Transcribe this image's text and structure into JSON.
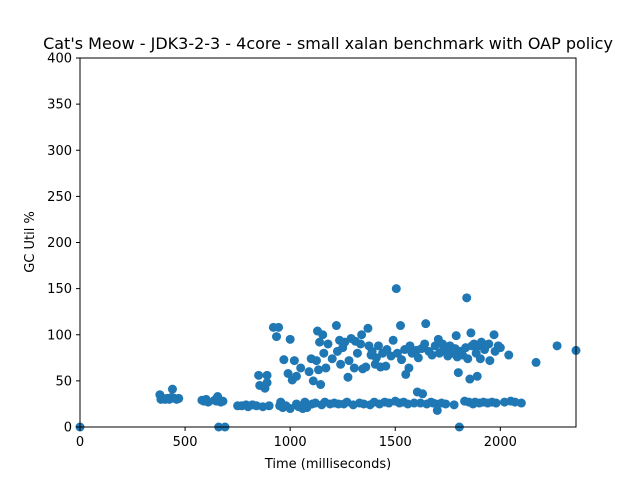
{
  "chart_data": {
    "type": "scatter",
    "title": "Cat's Meow - JDK3-2-3 - 4core -  small xalan benchmark with OAP policy",
    "xlabel": "Time (milliseconds)",
    "ylabel": "GC Util %",
    "xlim": [
      0,
      2360
    ],
    "ylim": [
      0,
      400
    ],
    "xticks": [
      "0",
      "500",
      "1000",
      "1500",
      "2000"
    ],
    "xtick_values": [
      0,
      500,
      1000,
      1500,
      2000
    ],
    "yticks": [
      "0",
      "50",
      "100",
      "150",
      "200",
      "250",
      "300",
      "350",
      "400"
    ],
    "ytick_values": [
      0,
      50,
      100,
      150,
      200,
      250,
      300,
      350,
      400
    ],
    "grid": false,
    "marker_color": "#1f77b4",
    "points": [
      [
        0,
        0
      ],
      [
        380,
        35
      ],
      [
        385,
        30
      ],
      [
        395,
        31
      ],
      [
        405,
        30
      ],
      [
        415,
        31
      ],
      [
        425,
        30
      ],
      [
        435,
        32
      ],
      [
        440,
        41
      ],
      [
        450,
        31
      ],
      [
        460,
        30
      ],
      [
        470,
        31
      ],
      [
        580,
        29
      ],
      [
        590,
        28
      ],
      [
        600,
        30
      ],
      [
        610,
        27
      ],
      [
        640,
        29
      ],
      [
        650,
        28
      ],
      [
        655,
        33
      ],
      [
        660,
        0
      ],
      [
        670,
        27
      ],
      [
        680,
        28
      ],
      [
        690,
        0
      ],
      [
        750,
        23
      ],
      [
        770,
        23
      ],
      [
        790,
        24
      ],
      [
        800,
        22
      ],
      [
        820,
        24
      ],
      [
        840,
        23
      ],
      [
        850,
        56
      ],
      [
        855,
        45
      ],
      [
        870,
        22
      ],
      [
        880,
        42
      ],
      [
        890,
        48
      ],
      [
        890,
        56
      ],
      [
        900,
        23
      ],
      [
        920,
        108
      ],
      [
        935,
        98
      ],
      [
        945,
        108
      ],
      [
        950,
        23
      ],
      [
        955,
        27
      ],
      [
        965,
        21
      ],
      [
        970,
        73
      ],
      [
        980,
        23
      ],
      [
        990,
        58
      ],
      [
        1000,
        20
      ],
      [
        1000,
        95
      ],
      [
        1010,
        51
      ],
      [
        1020,
        72
      ],
      [
        1030,
        25
      ],
      [
        1030,
        55
      ],
      [
        1040,
        22
      ],
      [
        1050,
        64
      ],
      [
        1060,
        20
      ],
      [
        1070,
        27
      ],
      [
        1080,
        21
      ],
      [
        1090,
        60
      ],
      [
        1100,
        74
      ],
      [
        1105,
        25
      ],
      [
        1110,
        50
      ],
      [
        1120,
        26
      ],
      [
        1125,
        72
      ],
      [
        1130,
        104
      ],
      [
        1135,
        62
      ],
      [
        1140,
        92
      ],
      [
        1145,
        46
      ],
      [
        1150,
        24
      ],
      [
        1155,
        100
      ],
      [
        1160,
        80
      ],
      [
        1165,
        27
      ],
      [
        1170,
        64
      ],
      [
        1180,
        90
      ],
      [
        1190,
        25
      ],
      [
        1200,
        74
      ],
      [
        1210,
        26
      ],
      [
        1220,
        110
      ],
      [
        1225,
        82
      ],
      [
        1230,
        25
      ],
      [
        1235,
        94
      ],
      [
        1240,
        68
      ],
      [
        1250,
        86
      ],
      [
        1255,
        25
      ],
      [
        1260,
        92
      ],
      [
        1270,
        27
      ],
      [
        1275,
        54
      ],
      [
        1280,
        72
      ],
      [
        1290,
        96
      ],
      [
        1300,
        24
      ],
      [
        1305,
        64
      ],
      [
        1310,
        93
      ],
      [
        1320,
        80
      ],
      [
        1330,
        26
      ],
      [
        1335,
        90
      ],
      [
        1340,
        100
      ],
      [
        1345,
        63
      ],
      [
        1350,
        25
      ],
      [
        1360,
        65
      ],
      [
        1370,
        107
      ],
      [
        1375,
        88
      ],
      [
        1380,
        24
      ],
      [
        1385,
        78
      ],
      [
        1390,
        82
      ],
      [
        1400,
        27
      ],
      [
        1405,
        68
      ],
      [
        1410,
        75
      ],
      [
        1420,
        88
      ],
      [
        1425,
        25
      ],
      [
        1430,
        65
      ],
      [
        1440,
        80
      ],
      [
        1450,
        27
      ],
      [
        1455,
        66
      ],
      [
        1460,
        84
      ],
      [
        1470,
        26
      ],
      [
        1480,
        77
      ],
      [
        1490,
        94
      ],
      [
        1500,
        28
      ],
      [
        1505,
        150
      ],
      [
        1510,
        80
      ],
      [
        1520,
        26
      ],
      [
        1525,
        110
      ],
      [
        1530,
        73
      ],
      [
        1540,
        27
      ],
      [
        1545,
        84
      ],
      [
        1550,
        57
      ],
      [
        1560,
        25
      ],
      [
        1565,
        64
      ],
      [
        1570,
        88
      ],
      [
        1580,
        80
      ],
      [
        1590,
        26
      ],
      [
        1600,
        83
      ],
      [
        1605,
        38
      ],
      [
        1610,
        75
      ],
      [
        1620,
        26
      ],
      [
        1625,
        85
      ],
      [
        1630,
        36
      ],
      [
        1640,
        90
      ],
      [
        1645,
        112
      ],
      [
        1650,
        25
      ],
      [
        1660,
        82
      ],
      [
        1670,
        27
      ],
      [
        1675,
        78
      ],
      [
        1680,
        26
      ],
      [
        1690,
        88
      ],
      [
        1695,
        25
      ],
      [
        1700,
        18
      ],
      [
        1705,
        95
      ],
      [
        1710,
        80
      ],
      [
        1720,
        26
      ],
      [
        1725,
        90
      ],
      [
        1730,
        84
      ],
      [
        1740,
        25
      ],
      [
        1745,
        82
      ],
      [
        1750,
        77
      ],
      [
        1760,
        88
      ],
      [
        1770,
        80
      ],
      [
        1780,
        24
      ],
      [
        1785,
        85
      ],
      [
        1790,
        99
      ],
      [
        1795,
        76
      ],
      [
        1800,
        59
      ],
      [
        1805,
        0
      ],
      [
        1810,
        82
      ],
      [
        1820,
        78
      ],
      [
        1830,
        28
      ],
      [
        1835,
        86
      ],
      [
        1840,
        140
      ],
      [
        1845,
        74
      ],
      [
        1850,
        27
      ],
      [
        1855,
        52
      ],
      [
        1860,
        102
      ],
      [
        1865,
        88
      ],
      [
        1870,
        25
      ],
      [
        1875,
        90
      ],
      [
        1880,
        27
      ],
      [
        1885,
        80
      ],
      [
        1890,
        55
      ],
      [
        1895,
        88
      ],
      [
        1900,
        26
      ],
      [
        1905,
        74
      ],
      [
        1910,
        92
      ],
      [
        1920,
        27
      ],
      [
        1925,
        84
      ],
      [
        1930,
        88
      ],
      [
        1940,
        26
      ],
      [
        1945,
        90
      ],
      [
        1950,
        72
      ],
      [
        1960,
        27
      ],
      [
        1970,
        100
      ],
      [
        1975,
        82
      ],
      [
        1980,
        26
      ],
      [
        1990,
        88
      ],
      [
        2000,
        86
      ],
      [
        2020,
        27
      ],
      [
        2040,
        78
      ],
      [
        2050,
        28
      ],
      [
        2070,
        27
      ],
      [
        2100,
        26
      ],
      [
        2170,
        70
      ],
      [
        2270,
        88
      ],
      [
        2360,
        83
      ]
    ]
  }
}
